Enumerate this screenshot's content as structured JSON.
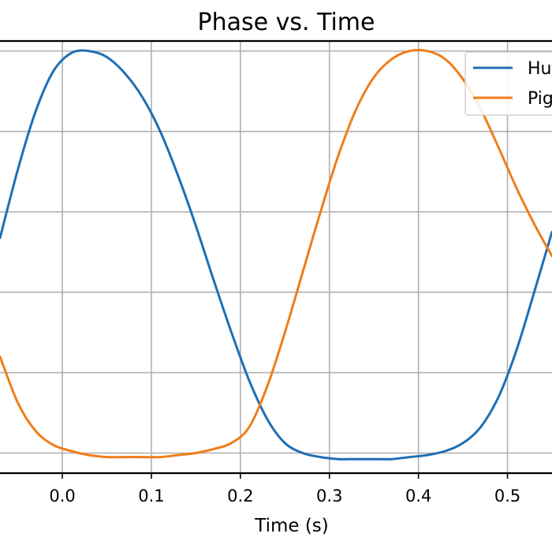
{
  "chart_data": {
    "type": "line",
    "title": "Phase vs. Time",
    "xlabel": "Time (s)",
    "ylabel": "",
    "xlim": [
      -0.07,
      0.55
    ],
    "ylim": [
      -1.1,
      1.05
    ],
    "x_ticks": [
      0.0,
      0.1,
      0.2,
      0.3,
      0.4,
      0.5
    ],
    "x_tick_labels": [
      "0.0",
      "0.1",
      "0.2",
      "0.3",
      "0.4",
      "0.5"
    ],
    "y_grid": [
      -1.0,
      -0.6,
      -0.2,
      0.2,
      0.6,
      1.0
    ],
    "grid": true,
    "legend": {
      "position": "top-right",
      "entries": [
        "Hu",
        "Pig"
      ]
    },
    "series": [
      {
        "name": "Hu",
        "color": "#1f6fb4",
        "x": [
          -0.07,
          -0.05,
          -0.03,
          -0.01,
          0.01,
          0.03,
          0.05,
          0.07,
          0.09,
          0.11,
          0.13,
          0.15,
          0.17,
          0.19,
          0.21,
          0.23,
          0.25,
          0.27,
          0.29,
          0.31,
          0.33,
          0.35,
          0.37,
          0.39,
          0.41,
          0.43,
          0.45,
          0.47,
          0.49,
          0.51,
          0.53,
          0.55
        ],
        "y": [
          0.07,
          0.41,
          0.7,
          0.9,
          0.99,
          1.0,
          0.97,
          0.89,
          0.77,
          0.6,
          0.38,
          0.13,
          -0.14,
          -0.4,
          -0.64,
          -0.83,
          -0.95,
          -1.0,
          -1.02,
          -1.03,
          -1.03,
          -1.03,
          -1.03,
          -1.02,
          -1.01,
          -0.99,
          -0.95,
          -0.87,
          -0.72,
          -0.49,
          -0.2,
          0.1
        ]
      },
      {
        "name": "Pig",
        "color": "#f07d1a",
        "x": [
          -0.07,
          -0.05,
          -0.03,
          -0.01,
          0.01,
          0.03,
          0.05,
          0.07,
          0.09,
          0.11,
          0.13,
          0.15,
          0.17,
          0.19,
          0.21,
          0.23,
          0.25,
          0.27,
          0.29,
          0.31,
          0.33,
          0.35,
          0.37,
          0.39,
          0.41,
          0.43,
          0.45,
          0.47,
          0.49,
          0.51,
          0.53,
          0.55
        ],
        "y": [
          -0.52,
          -0.75,
          -0.89,
          -0.96,
          -0.99,
          -1.01,
          -1.02,
          -1.02,
          -1.02,
          -1.02,
          -1.01,
          -1.0,
          -0.98,
          -0.95,
          -0.87,
          -0.67,
          -0.4,
          -0.1,
          0.2,
          0.48,
          0.71,
          0.87,
          0.96,
          1.0,
          1.0,
          0.96,
          0.86,
          0.71,
          0.52,
          0.32,
          0.14,
          -0.02
        ]
      }
    ]
  }
}
